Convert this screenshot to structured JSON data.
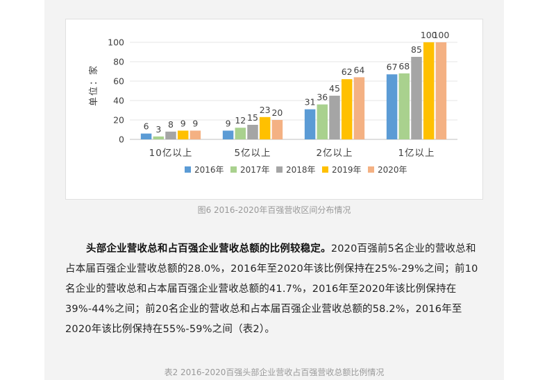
{
  "chart_data": {
    "type": "bar",
    "title": "",
    "ylabel": "单位：家",
    "xlabel": "",
    "ylim": [
      0,
      100
    ],
    "yticks": [
      0,
      20,
      40,
      60,
      80,
      100
    ],
    "grid": true,
    "legend_position": "bottom",
    "categories": [
      "10亿以上",
      "5亿以上",
      "2亿以上",
      "1亿以上"
    ],
    "series": [
      {
        "name": "2016年",
        "color": "#5b9bd5",
        "values": [
          6,
          9,
          31,
          67
        ]
      },
      {
        "name": "2017年",
        "color": "#a9d18e",
        "values": [
          3,
          12,
          36,
          68
        ]
      },
      {
        "name": "2018年",
        "color": "#a5a5a5",
        "values": [
          8,
          15,
          45,
          85
        ]
      },
      {
        "name": "2019年",
        "color": "#ffc000",
        "values": [
          9,
          23,
          62,
          100
        ]
      },
      {
        "name": "2020年",
        "color": "#f4b183",
        "values": [
          9,
          20,
          64,
          100
        ]
      }
    ]
  },
  "figure_caption": "图6 2016-2020年百强营收区间分布情况",
  "paragraph": {
    "bold": "头部企业营收总和占百强企业营收总额的比例较稳定。",
    "text": "2020百强前5名企业的营收总和占本届百强企业营收总额的28.0%，2016年至2020年该比例保持在25%-29%之间；前10名企业的营收总和占本届百强企业营收总额的41.7%，2016年至2020年该比例保持在39%-44%之间；前20名企业的营收总和占本届百强企业营收总额的58.2%，2016年至2020年该比例保持在55%-59%之间（表2）。"
  },
  "table_caption": "表2 2016-2020百强头部企业营收占百强营收总额比例情况"
}
